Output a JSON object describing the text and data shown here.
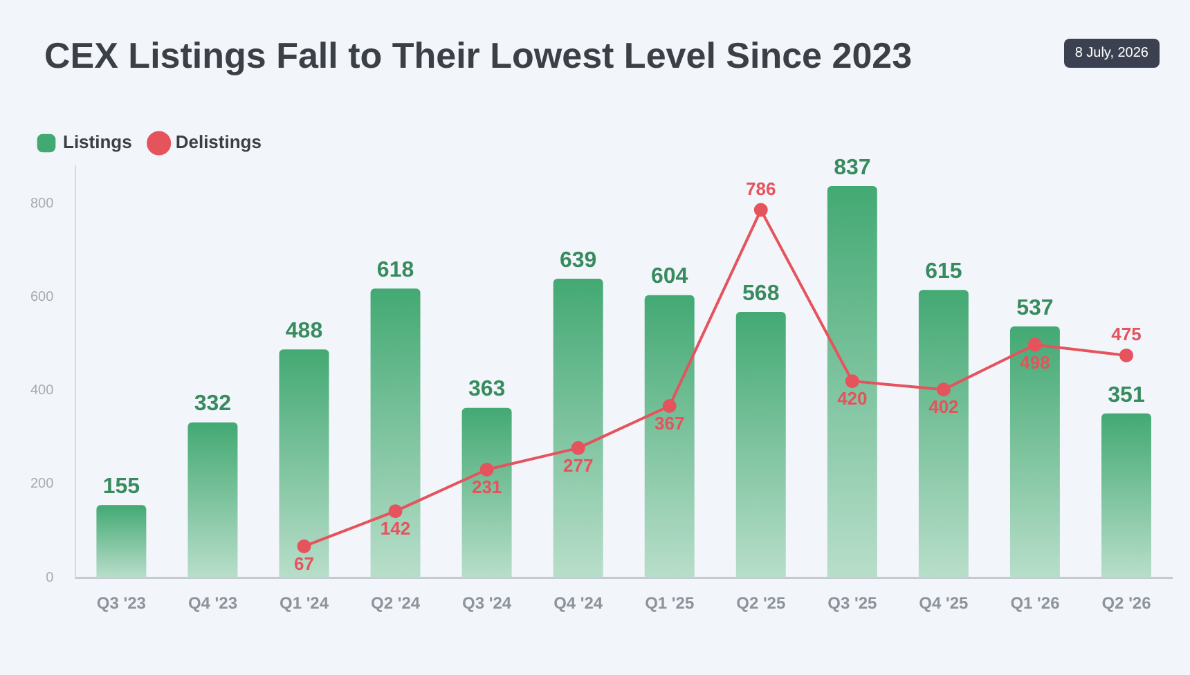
{
  "chart_data": {
    "type": "bar",
    "title": "CEX Listings Fall to Their Lowest Level Since 2023",
    "annotations": [
      "8 July, 2026"
    ],
    "categories": [
      "Q3 '23",
      "Q4 '23",
      "Q1 '24",
      "Q2 '24",
      "Q3 '24",
      "Q4 '24",
      "Q1 '25",
      "Q2 '25",
      "Q3 '25",
      "Q4 '25",
      "Q1 '26",
      "Q2 '26"
    ],
    "series": [
      {
        "name": "Listings",
        "color": "#43a973",
        "values": [
          155,
          332,
          488,
          618,
          363,
          639,
          604,
          568,
          837,
          615,
          537,
          351
        ]
      },
      {
        "name": "Delistings",
        "type": "line",
        "color": "#e5535d",
        "values": [
          null,
          null,
          67,
          142,
          231,
          277,
          367,
          786,
          420,
          402,
          498,
          475
        ]
      }
    ],
    "ylim": [
      0,
      880
    ],
    "yticks": [
      0,
      200,
      400,
      600,
      800
    ],
    "grid": false,
    "legend": "top left",
    "marker": "circle",
    "line_style": "solid",
    "data_labels": true
  }
}
